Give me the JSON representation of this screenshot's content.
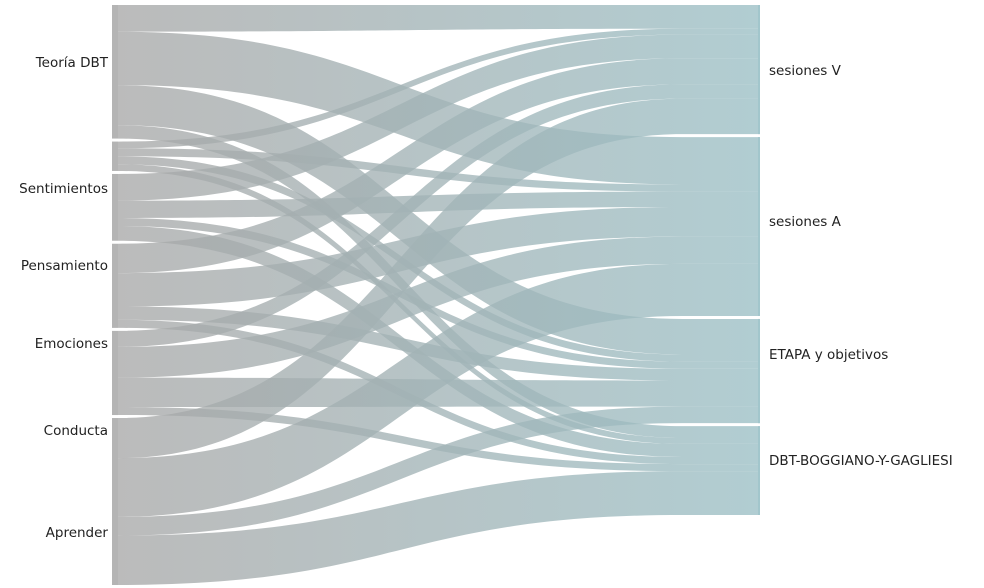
{
  "chart_data": {
    "type": "sankey",
    "sources": [
      "Teoría DBT",
      "Sentimientos",
      "Pensamiento",
      "Emociones",
      "Conducta",
      "Aprender"
    ],
    "targets": [
      "sesiones V",
      "sesiones A",
      "ETAPA y objetivos",
      "DBT-BOGGIANO-Y-GAGLIESI"
    ],
    "links": [
      {
        "source": "Teoría DBT",
        "target": "sesiones V",
        "value": 2
      },
      {
        "source": "Teoría DBT",
        "target": "sesiones A",
        "value": 4
      },
      {
        "source": "Teoría DBT",
        "target": "ETAPA y objetivos",
        "value": 3
      },
      {
        "source": "Teoría DBT",
        "target": "DBT-BOGGIANO-Y-GAGLIESI",
        "value": 1
      },
      {
        "source": "Sentimientos",
        "target": "sesiones V",
        "value": 0.5
      },
      {
        "source": "Sentimientos",
        "target": "sesiones A",
        "value": 0.6
      },
      {
        "source": "Sentimientos",
        "target": "ETAPA y objetivos",
        "value": 0.6
      },
      {
        "source": "Sentimientos",
        "target": "DBT-BOGGIANO-Y-GAGLIESI",
        "value": 0.5
      },
      {
        "source": "Pensamiento",
        "target": "sesiones V",
        "value": 2
      },
      {
        "source": "Pensamiento",
        "target": "sesiones A",
        "value": 1.3
      },
      {
        "source": "Pensamiento",
        "target": "ETAPA y objetivos",
        "value": 0.6
      },
      {
        "source": "Pensamiento",
        "target": "DBT-BOGGIANO-Y-GAGLIESI",
        "value": 1.1
      },
      {
        "source": "Emociones",
        "target": "sesiones V",
        "value": 2.2
      },
      {
        "source": "Emociones",
        "target": "sesiones A",
        "value": 2.5
      },
      {
        "source": "Emociones",
        "target": "ETAPA y objetivos",
        "value": 1
      },
      {
        "source": "Emociones",
        "target": "DBT-BOGGIANO-Y-GAGLIESI",
        "value": 0.6
      },
      {
        "source": "Conducta",
        "target": "sesiones V",
        "value": 1.2
      },
      {
        "source": "Conducta",
        "target": "sesiones A",
        "value": 2.3
      },
      {
        "source": "Conducta",
        "target": "ETAPA y objetivos",
        "value": 2.2
      },
      {
        "source": "Conducta",
        "target": "DBT-BOGGIANO-Y-GAGLIESI",
        "value": 0.6
      },
      {
        "source": "Aprender",
        "target": "sesiones V",
        "value": 3
      },
      {
        "source": "Aprender",
        "target": "sesiones A",
        "value": 4.4
      },
      {
        "source": "Aprender",
        "target": "ETAPA y objetivos",
        "value": 1.4
      },
      {
        "source": "Aprender",
        "target": "DBT-BOGGIANO-Y-GAGLIESI",
        "value": 3.7
      }
    ],
    "colors": {
      "source_node": "#b4b4b4",
      "target_node": "#a2c6cc",
      "link_start": "#a8a8a8",
      "link_end": "#9bbfc5"
    }
  }
}
